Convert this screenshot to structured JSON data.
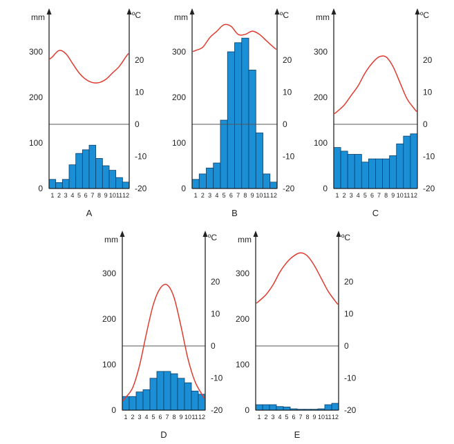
{
  "colors": {
    "bars": "#1a8fd6",
    "bar_edge": "#0b3c66",
    "temperature": "#e03a2e",
    "axis": "#222222",
    "zero_line": "#555555"
  },
  "chart_data": [
    {
      "type": "bar",
      "label": "A",
      "categories": [
        "1",
        "2",
        "3",
        "4",
        "5",
        "6",
        "7",
        "8",
        "9",
        "10",
        "11",
        "12"
      ],
      "left_axis": {
        "unit": "mm",
        "ticks": [
          "0",
          "100",
          "200",
          "300"
        ],
        "ylim": [
          0,
          300
        ]
      },
      "right_axis": {
        "unit": "ºC",
        "ticks": [
          "20",
          "10",
          "0",
          "-10",
          "-20"
        ],
        "ylim": [
          -20,
          20
        ]
      },
      "precipitation_mm": [
        20,
        13,
        20,
        52,
        77,
        85,
        95,
        66,
        50,
        40,
        24,
        14
      ],
      "temperature_c": [
        21,
        23,
        22,
        19,
        16,
        14,
        13,
        13,
        14,
        16,
        18,
        21
      ]
    },
    {
      "type": "bar",
      "label": "B",
      "categories": [
        "1",
        "2",
        "3",
        "4",
        "5",
        "6",
        "7",
        "8",
        "9",
        "10",
        "11",
        "12"
      ],
      "left_axis": {
        "unit": "mm",
        "ticks": [
          "0",
          "100",
          "200",
          "300"
        ],
        "ylim": [
          0,
          300
        ]
      },
      "right_axis": {
        "unit": "ºC",
        "ticks": [
          "20",
          "10",
          "0",
          "-10",
          "-20"
        ],
        "ylim": [
          -20,
          20
        ]
      },
      "precipitation_mm": [
        20,
        32,
        45,
        56,
        150,
        300,
        320,
        330,
        260,
        122,
        32,
        14
      ],
      "temperature_c": [
        23,
        24,
        27,
        29,
        31,
        30.5,
        28,
        28,
        29,
        28,
        26,
        24
      ]
    },
    {
      "type": "bar",
      "label": "C",
      "categories": [
        "1",
        "2",
        "3",
        "4",
        "5",
        "6",
        "7",
        "8",
        "9",
        "10",
        "11",
        "12"
      ],
      "left_axis": {
        "unit": "mm",
        "ticks": [
          "0",
          "100",
          "200",
          "300"
        ],
        "ylim": [
          0,
          300
        ]
      },
      "right_axis": {
        "unit": "ºC",
        "ticks": [
          "20",
          "10",
          "0",
          "-10",
          "-20"
        ],
        "ylim": [
          -20,
          20
        ]
      },
      "precipitation_mm": [
        90,
        82,
        75,
        75,
        58,
        65,
        65,
        65,
        72,
        98,
        115,
        120
      ],
      "temperature_c": [
        4,
        6,
        9,
        12,
        16,
        19,
        21,
        21,
        18,
        13,
        8,
        5
      ]
    },
    {
      "type": "bar",
      "label": "D",
      "categories": [
        "1",
        "2",
        "3",
        "4",
        "5",
        "6",
        "7",
        "8",
        "9",
        "10",
        "11",
        "12"
      ],
      "left_axis": {
        "unit": "mm",
        "ticks": [
          "0",
          "100",
          "200",
          "300"
        ],
        "ylim": [
          0,
          300
        ]
      },
      "right_axis": {
        "unit": "ºC",
        "ticks": [
          "20",
          "10",
          "0",
          "-10",
          "-20"
        ],
        "ylim": [
          -20,
          20
        ]
      },
      "precipitation_mm": [
        30,
        30,
        40,
        45,
        70,
        85,
        85,
        80,
        70,
        60,
        42,
        35
      ],
      "temperature_c": [
        -16,
        -13,
        -6,
        4,
        13,
        18,
        19,
        15,
        6,
        -4,
        -11,
        -15
      ]
    },
    {
      "type": "bar",
      "label": "E",
      "categories": [
        "1",
        "2",
        "3",
        "4",
        "5",
        "6",
        "7",
        "8",
        "9",
        "10",
        "11",
        "12"
      ],
      "left_axis": {
        "unit": "mm",
        "ticks": [
          "0",
          "100",
          "200",
          "300"
        ],
        "ylim": [
          0,
          300
        ]
      },
      "right_axis": {
        "unit": "ºC",
        "ticks": [
          "20",
          "10",
          "0",
          "-10",
          "-20"
        ],
        "ylim": [
          -20,
          20
        ]
      },
      "precipitation_mm": [
        12,
        12,
        12,
        8,
        7,
        3,
        2,
        2,
        2,
        3,
        12,
        15
      ],
      "temperature_c": [
        14,
        16,
        19,
        23,
        26,
        28,
        29,
        28,
        25,
        21,
        17,
        14
      ]
    }
  ]
}
